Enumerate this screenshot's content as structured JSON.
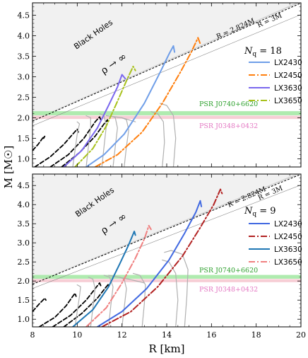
{
  "x_axis_title": "R [km]",
  "y_axis_title": "M [M☉]",
  "chart_data": [
    {
      "type": "line",
      "panel": "top",
      "nq_label": "N_q = 18",
      "xlim": [
        8,
        20
      ],
      "ylim": [
        0.8,
        4.8
      ],
      "x_ticks": [
        "8",
        "10",
        "12",
        "14",
        "16",
        "18",
        "20"
      ],
      "y_ticks": [
        "1.0",
        "1.5",
        "2.0",
        "2.5",
        "3.0",
        "3.5",
        "4.0",
        "4.5"
      ],
      "annotations": {
        "black_holes": "Black Holes",
        "rho_limit": "ρ → ∞",
        "schwarzschild_2824": "R = 2.824M",
        "schwarzschild_3": "R = 3M",
        "psr_heavy": "PSR J0740+6620",
        "psr_light": "PSR J0348+0432"
      },
      "psr_bands": [
        {
          "name": "PSR J0740+6620",
          "m_low": 2.06,
          "m_high": 2.16,
          "color": "#a6e9a6"
        },
        {
          "name": "PSR J0348+0432",
          "m_low": 1.97,
          "m_high": 2.05,
          "color": "#f6c9d0"
        }
      ],
      "series": [
        {
          "name": "LX2430",
          "color": "#6f9ee8",
          "dash": "solid",
          "width": 2,
          "points": [
            [
              10.4,
              0.8
            ],
            [
              11.2,
              1.1
            ],
            [
              12.1,
              1.6
            ],
            [
              13.0,
              2.35
            ],
            [
              13.7,
              3.1
            ],
            [
              14.1,
              3.55
            ],
            [
              14.3,
              3.75
            ],
            [
              14.35,
              3.6
            ]
          ]
        },
        {
          "name": "LX2450",
          "color": "#ff7f0e",
          "dash": "dashdot",
          "width": 2,
          "points": [
            [
              10.8,
              0.8
            ],
            [
              11.8,
              1.1
            ],
            [
              12.9,
              1.65
            ],
            [
              13.8,
              2.35
            ],
            [
              14.6,
              3.1
            ],
            [
              15.1,
              3.6
            ],
            [
              15.4,
              3.95
            ],
            [
              15.5,
              3.8
            ]
          ]
        },
        {
          "name": "LX3630",
          "color": "#7b68ee",
          "dash": "solid",
          "width": 2,
          "points": [
            [
              9.4,
              0.8
            ],
            [
              10.2,
              1.2
            ],
            [
              10.9,
              1.75
            ],
            [
              11.4,
              2.3
            ],
            [
              11.8,
              2.75
            ],
            [
              12.0,
              3.05
            ],
            [
              12.15,
              2.95
            ]
          ]
        },
        {
          "name": "LX3650",
          "color": "#a8c11c",
          "dash": "dashdot",
          "width": 2,
          "points": [
            [
              9.9,
              0.8
            ],
            [
              10.7,
              1.25
            ],
            [
              11.3,
              1.8
            ],
            [
              11.8,
              2.4
            ],
            [
              12.2,
              2.9
            ],
            [
              12.5,
              3.25
            ],
            [
              12.6,
              3.15
            ]
          ]
        },
        {
          "name": "",
          "color": "#000000",
          "dash": "dashed",
          "width": 1.8,
          "points": [
            [
              8.0,
              1.2
            ],
            [
              8.25,
              1.35
            ],
            [
              8.45,
              1.5
            ],
            [
              8.55,
              1.55
            ],
            [
              8.5,
              1.5
            ]
          ]
        },
        {
          "name": "",
          "color": "#000000",
          "dash": "dashed",
          "width": 1.8,
          "points": [
            [
              8.1,
              0.8
            ],
            [
              8.8,
              1.05
            ],
            [
              9.4,
              1.35
            ],
            [
              9.8,
              1.6
            ],
            [
              10.0,
              1.72
            ],
            [
              10.05,
              1.65
            ]
          ]
        },
        {
          "name": "",
          "color": "#000000",
          "dash": "dashed",
          "width": 1.8,
          "points": [
            [
              8.8,
              0.8
            ],
            [
              9.6,
              1.1
            ],
            [
              10.3,
              1.5
            ],
            [
              10.8,
              1.9
            ],
            [
              11.0,
              2.02
            ],
            [
              11.05,
              1.95
            ]
          ]
        },
        {
          "name": "",
          "color": "#000000",
          "dash": "dashed",
          "width": 1.8,
          "points": [
            [
              9.3,
              0.8
            ],
            [
              10.1,
              1.15
            ],
            [
              10.8,
              1.55
            ],
            [
              11.2,
              1.85
            ],
            [
              11.35,
              1.95
            ],
            [
              11.35,
              1.88
            ]
          ]
        },
        {
          "name": "",
          "color": "#b0b0b0",
          "dash": "solid",
          "width": 1.2,
          "points": [
            [
              9.8,
              0.8
            ],
            [
              9.9,
              1.2
            ],
            [
              10.0,
              1.6
            ],
            [
              10.1,
              1.85
            ],
            [
              10.0,
              1.9
            ]
          ]
        },
        {
          "name": "",
          "color": "#b0b0b0",
          "dash": "solid",
          "width": 1.2,
          "points": [
            [
              10.4,
              0.8
            ],
            [
              10.5,
              1.3
            ],
            [
              10.6,
              1.75
            ],
            [
              10.6,
              2.0
            ],
            [
              10.4,
              2.05
            ]
          ]
        },
        {
          "name": "",
          "color": "#b0b0b0",
          "dash": "solid",
          "width": 1.2,
          "points": [
            [
              11.1,
              0.8
            ],
            [
              11.2,
              1.3
            ],
            [
              11.3,
              1.8
            ],
            [
              11.2,
              2.05
            ],
            [
              11.0,
              2.1
            ]
          ]
        },
        {
          "name": "",
          "color": "#b0b0b0",
          "dash": "solid",
          "width": 1.2,
          "points": [
            [
              11.6,
              0.8
            ],
            [
              11.7,
              1.3
            ],
            [
              11.8,
              1.75
            ],
            [
              11.7,
              2.0
            ],
            [
              11.5,
              2.05
            ]
          ]
        },
        {
          "name": "",
          "color": "#b0b0b0",
          "dash": "solid",
          "width": 1.2,
          "points": [
            [
              12.1,
              0.8
            ],
            [
              12.2,
              1.3
            ],
            [
              12.3,
              1.7
            ],
            [
              12.2,
              1.95
            ],
            [
              12.0,
              2.0
            ]
          ]
        },
        {
          "name": "",
          "color": "#b0b0b0",
          "dash": "solid",
          "width": 1.2,
          "points": [
            [
              13.8,
              0.8
            ],
            [
              13.9,
              1.4
            ],
            [
              13.85,
              1.9
            ],
            [
              13.6,
              2.1
            ],
            [
              13.3,
              2.15
            ]
          ]
        },
        {
          "name": "",
          "color": "#b0b0b0",
          "dash": "solid",
          "width": 1.2,
          "points": [
            [
              14.3,
              0.8
            ],
            [
              14.4,
              1.5
            ],
            [
              14.3,
              2.05
            ],
            [
              14.0,
              2.3
            ],
            [
              13.7,
              2.35
            ]
          ]
        },
        {
          "name": "",
          "color": "#b0b0b0",
          "dash": "solid",
          "width": 1.2,
          "points": [
            [
              11.3,
              2.05
            ],
            [
              12.0,
              2.0
            ],
            [
              12.6,
              1.9
            ]
          ]
        }
      ]
    },
    {
      "type": "line",
      "panel": "bottom",
      "nq_label": "N_q = 9",
      "xlim": [
        8,
        20
      ],
      "ylim": [
        0.8,
        4.8
      ],
      "x_ticks": [
        "8",
        "10",
        "12",
        "14",
        "16",
        "18",
        "20"
      ],
      "y_ticks": [
        "1.0",
        "1.5",
        "2.0",
        "2.5",
        "3.0",
        "3.5",
        "4.0",
        "4.5"
      ],
      "annotations": {
        "black_holes": "Black Holes",
        "rho_limit": "ρ → ∞",
        "schwarzschild_2824": "R = 2.824M",
        "schwarzschild_3": "R = 3M",
        "psr_heavy": "PSR J0740+6620",
        "psr_light": "PSR J0348+0432"
      },
      "psr_bands": [
        {
          "name": "PSR J0740+6620",
          "m_low": 2.06,
          "m_high": 2.16,
          "color": "#a6e9a6"
        },
        {
          "name": "PSR J0348+0432",
          "m_low": 1.97,
          "m_high": 2.05,
          "color": "#f6c9d0"
        }
      ],
      "series": [
        {
          "name": "LX2430",
          "color": "#4169e1",
          "dash": "solid",
          "width": 2,
          "points": [
            [
              10.9,
              0.8
            ],
            [
              12.0,
              1.2
            ],
            [
              13.1,
              1.8
            ],
            [
              14.1,
              2.55
            ],
            [
              14.8,
              3.25
            ],
            [
              15.3,
              3.8
            ],
            [
              15.5,
              4.1
            ],
            [
              15.55,
              3.95
            ]
          ]
        },
        {
          "name": "LX2450",
          "color": "#b22222",
          "dash": "dashdot",
          "width": 2,
          "points": [
            [
              11.1,
              0.8
            ],
            [
              12.4,
              1.2
            ],
            [
              13.6,
              1.85
            ],
            [
              14.7,
              2.65
            ],
            [
              15.5,
              3.4
            ],
            [
              16.1,
              4.0
            ],
            [
              16.4,
              4.4
            ],
            [
              16.5,
              4.25
            ]
          ]
        },
        {
          "name": "LX3630",
          "color": "#1f77b4",
          "dash": "solid",
          "width": 2,
          "points": [
            [
              9.8,
              0.8
            ],
            [
              10.7,
              1.25
            ],
            [
              11.4,
              1.85
            ],
            [
              11.9,
              2.45
            ],
            [
              12.3,
              2.95
            ],
            [
              12.55,
              3.3
            ],
            [
              12.6,
              3.2
            ]
          ]
        },
        {
          "name": "LX3650",
          "color": "#f08080",
          "dash": "dashdot",
          "width": 2,
          "points": [
            [
              10.4,
              0.8
            ],
            [
              11.3,
              1.3
            ],
            [
              12.0,
              1.95
            ],
            [
              12.6,
              2.6
            ],
            [
              13.0,
              3.1
            ],
            [
              13.2,
              3.45
            ],
            [
              13.3,
              3.35
            ]
          ]
        },
        {
          "name": "",
          "color": "#000000",
          "dash": "dashed",
          "width": 1.8,
          "points": [
            [
              8.0,
              1.2
            ],
            [
              8.3,
              1.4
            ],
            [
              8.55,
              1.55
            ],
            [
              8.6,
              1.5
            ]
          ]
        },
        {
          "name": "",
          "color": "#000000",
          "dash": "dashed",
          "width": 1.8,
          "points": [
            [
              8.3,
              0.8
            ],
            [
              9.0,
              1.05
            ],
            [
              9.5,
              1.35
            ],
            [
              9.8,
              1.6
            ],
            [
              9.9,
              1.68
            ],
            [
              9.95,
              1.6
            ]
          ]
        },
        {
          "name": "",
          "color": "#000000",
          "dash": "dashed",
          "width": 1.8,
          "points": [
            [
              8.9,
              0.8
            ],
            [
              9.7,
              1.1
            ],
            [
              10.4,
              1.5
            ],
            [
              10.8,
              1.8
            ],
            [
              11.0,
              1.95
            ],
            [
              11.05,
              1.88
            ]
          ]
        },
        {
          "name": "",
          "color": "#000000",
          "dash": "dashed",
          "width": 1.8,
          "points": [
            [
              9.4,
              0.8
            ],
            [
              10.2,
              1.15
            ],
            [
              10.9,
              1.55
            ],
            [
              11.3,
              1.85
            ],
            [
              11.4,
              1.92
            ],
            [
              11.4,
              1.85
            ]
          ]
        },
        {
          "name": "",
          "color": "#b0b0b0",
          "dash": "solid",
          "width": 1.2,
          "points": [
            [
              9.9,
              0.8
            ],
            [
              10.0,
              1.2
            ],
            [
              10.1,
              1.6
            ],
            [
              10.15,
              1.85
            ],
            [
              10.0,
              1.9
            ]
          ]
        },
        {
          "name": "",
          "color": "#b0b0b0",
          "dash": "solid",
          "width": 1.2,
          "points": [
            [
              10.6,
              0.8
            ],
            [
              10.7,
              1.3
            ],
            [
              10.8,
              1.8
            ],
            [
              10.7,
              2.05
            ],
            [
              10.5,
              2.1
            ]
          ]
        },
        {
          "name": "",
          "color": "#b0b0b0",
          "dash": "solid",
          "width": 1.2,
          "points": [
            [
              11.4,
              0.8
            ],
            [
              11.5,
              1.35
            ],
            [
              11.6,
              1.85
            ],
            [
              11.45,
              2.1
            ],
            [
              11.2,
              2.15
            ]
          ]
        },
        {
          "name": "",
          "color": "#b0b0b0",
          "dash": "solid",
          "width": 1.2,
          "points": [
            [
              12.0,
              0.8
            ],
            [
              12.1,
              1.3
            ],
            [
              12.2,
              1.8
            ],
            [
              12.1,
              2.05
            ],
            [
              11.9,
              2.1
            ]
          ]
        },
        {
          "name": "",
          "color": "#b0b0b0",
          "dash": "solid",
          "width": 1.2,
          "points": [
            [
              12.9,
              0.8
            ],
            [
              13.0,
              1.4
            ],
            [
              13.05,
              1.9
            ],
            [
              12.8,
              2.15
            ],
            [
              12.5,
              2.2
            ]
          ]
        },
        {
          "name": "",
          "color": "#b0b0b0",
          "dash": "solid",
          "width": 1.2,
          "points": [
            [
              14.4,
              0.8
            ],
            [
              14.5,
              1.5
            ],
            [
              14.4,
              2.2
            ],
            [
              14.1,
              2.5
            ],
            [
              13.8,
              2.55
            ]
          ]
        },
        {
          "name": "",
          "color": "#b0b0b0",
          "dash": "solid",
          "width": 1.2,
          "points": [
            [
              14.8,
              0.8
            ],
            [
              14.9,
              1.6
            ],
            [
              14.95,
              2.3
            ],
            [
              14.7,
              2.7
            ],
            [
              14.2,
              2.8
            ],
            [
              13.9,
              2.75
            ]
          ]
        },
        {
          "name": "",
          "color": "#b0b0b0",
          "dash": "solid",
          "width": 1.2,
          "points": [
            [
              11.4,
              2.15
            ],
            [
              12.3,
              2.05
            ],
            [
              13.0,
              1.95
            ]
          ]
        }
      ]
    }
  ]
}
